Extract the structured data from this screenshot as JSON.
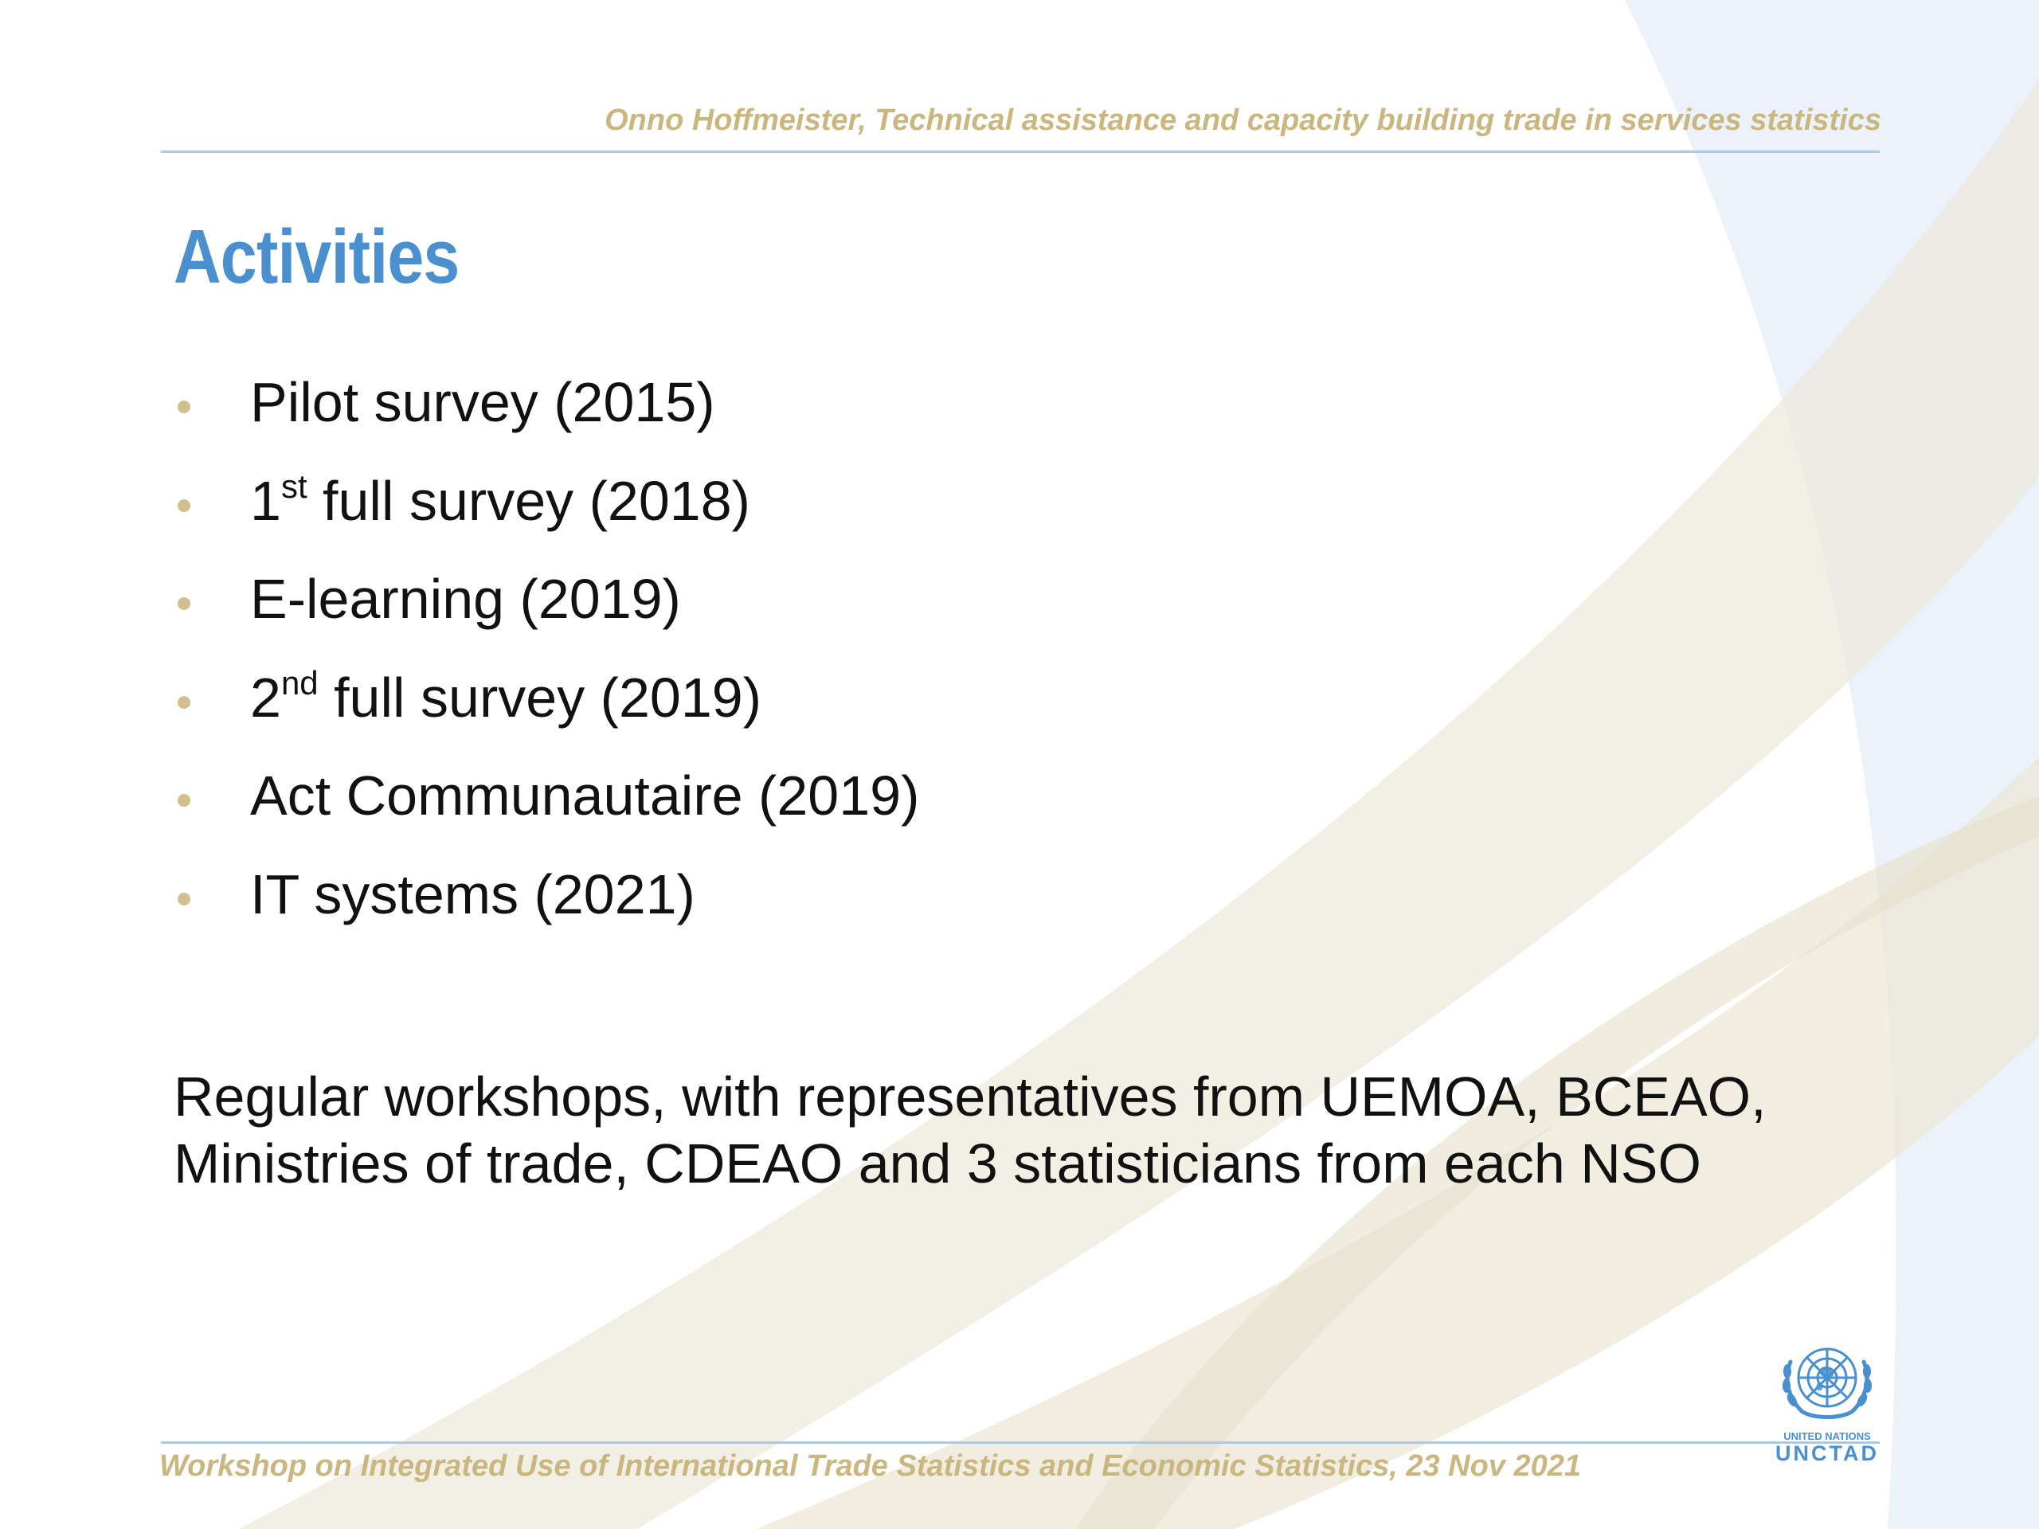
{
  "header": {
    "text": "Onno Hoffmeister, Technical assistance and capacity building trade in services statistics"
  },
  "title": "Activities",
  "bullets": [
    {
      "pre": "Pilot survey (2015)",
      "sup": "",
      "post": ""
    },
    {
      "pre": "1",
      "sup": "st",
      "post": " full survey (2018)"
    },
    {
      "pre": "E-learning (2019)",
      "sup": "",
      "post": ""
    },
    {
      "pre": "2",
      "sup": "nd",
      "post": " full survey (2019)"
    },
    {
      "pre": "Act Communautaire (2019)",
      "sup": "",
      "post": ""
    },
    {
      "pre": "IT systems (2021)",
      "sup": "",
      "post": ""
    }
  ],
  "paragraph": {
    "line1": "Regular workshops, with representatives from UEMOA, BCEAO,",
    "line2": "Ministries of trade, CDEAO and 3 statisticians from each NSO"
  },
  "footer": {
    "text": "Workshop on Integrated Use of International Trade Statistics and Economic Statistics, 23 Nov 2021"
  },
  "logo": {
    "line1": "UNITED NATIONS",
    "line2": "UNCTAD"
  },
  "colors": {
    "accent_blue": "#4a8fce",
    "gold": "#c9b77f",
    "rule_blue": "#a9c9e6"
  }
}
